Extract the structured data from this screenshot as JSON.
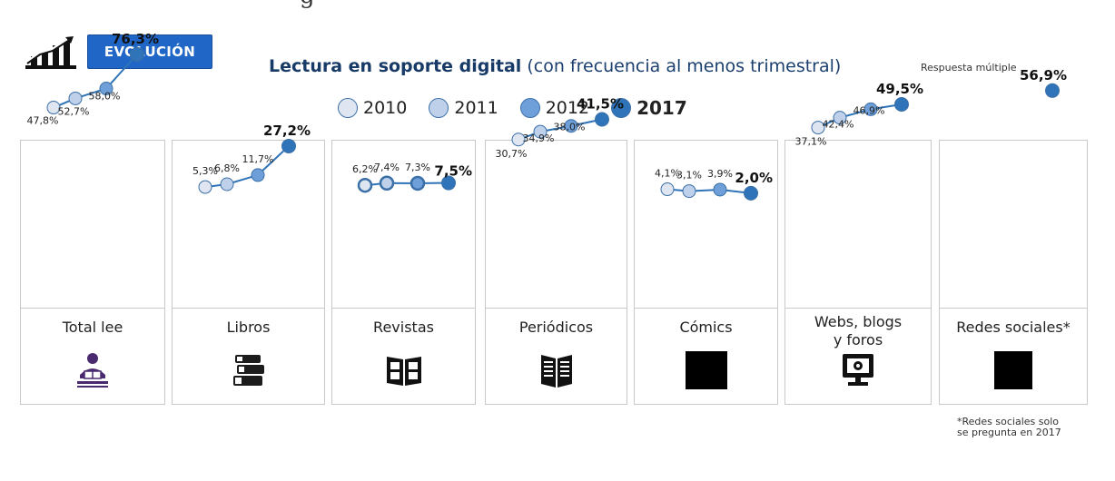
{
  "top_text": "g",
  "badge": {
    "label": "EVOLUCIÓN"
  },
  "header": {
    "title_bold": "Lectura en soporte digital",
    "title_rest": " (con frecuencia al menos trimestral)",
    "note": "Respuesta múltiple"
  },
  "colors": {
    "s2010": "#dfe6f1",
    "s2011": "#bfd1ea",
    "s2012": "#6f9fd8",
    "s2017": "#2f74b8",
    "line": "#2f74b8",
    "stroke": "#3a6fa8",
    "badge": "#1f66c6",
    "title": "#1b3f6e"
  },
  "chart_data": {
    "type": "line",
    "title": "Lectura en soporte digital (con frecuencia al menos trimestral)",
    "x": [
      "2010",
      "2011",
      "2012",
      "2017"
    ],
    "legend_placement": "top",
    "grid": false,
    "unit": "%",
    "categories": [
      "Total lee",
      "Libros",
      "Revistas",
      "Periódicos",
      "Cómics",
      "Webs, blogs y foros",
      "Redes sociales*"
    ],
    "icons": [
      "reader-icon",
      "books-icon",
      "magazine-icon",
      "newspaper-icon",
      "comic-icon",
      "monitor-icon",
      "social-icon"
    ],
    "series": [
      {
        "name": "Total lee",
        "values": [
          47.8,
          52.7,
          58.0,
          76.3
        ],
        "labels": [
          "47,8%",
          "52,7%",
          "58,0%",
          "76,3%"
        ]
      },
      {
        "name": "Libros",
        "values": [
          5.3,
          6.8,
          11.7,
          27.2
        ],
        "labels": [
          "5,3%",
          "6,8%",
          "11,7%",
          "27,2%"
        ]
      },
      {
        "name": "Revistas",
        "values": [
          6.2,
          7.4,
          7.3,
          7.5
        ],
        "labels": [
          "6,2%",
          "7,4%",
          "7,3%",
          "7,5%"
        ]
      },
      {
        "name": "Periódicos",
        "values": [
          30.7,
          34.9,
          38.0,
          41.5
        ],
        "labels": [
          "30,7%",
          "34,9%",
          "38,0%",
          "41,5%"
        ]
      },
      {
        "name": "Cómics",
        "values": [
          4.1,
          3.1,
          3.9,
          2.0
        ],
        "labels": [
          "4,1%",
          "3,1%",
          "3,9%",
          "2,0%"
        ]
      },
      {
        "name": "Webs, blogs y foros",
        "values": [
          37.1,
          42.4,
          46.9,
          49.5
        ],
        "labels": [
          "37,1%",
          "42,4%",
          "46,9%",
          "49,5%"
        ]
      },
      {
        "name": "Redes sociales*",
        "values": [
          null,
          null,
          null,
          56.9
        ],
        "labels": [
          "",
          "",
          "",
          "56,9%"
        ]
      }
    ]
  },
  "footnote": "*Redes sociales solo\nse pregunta en 2017"
}
